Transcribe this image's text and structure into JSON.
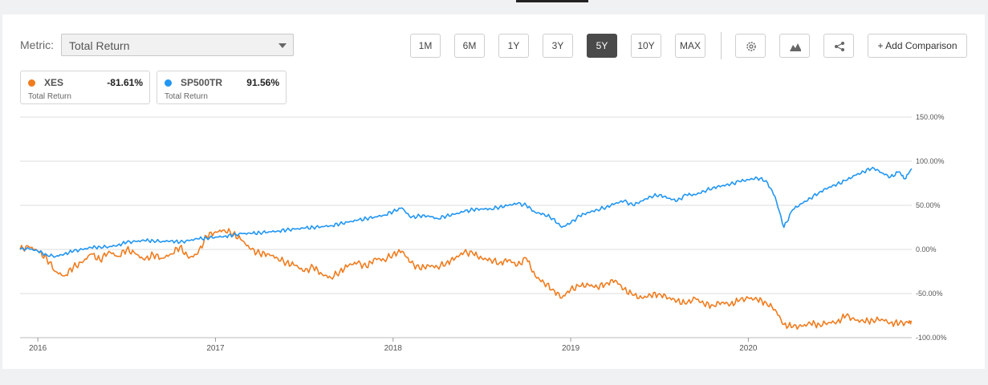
{
  "metric": {
    "label": "Metric:",
    "selected": "Total Return"
  },
  "ranges": [
    {
      "label": "1M",
      "active": false
    },
    {
      "label": "6M",
      "active": false
    },
    {
      "label": "1Y",
      "active": false
    },
    {
      "label": "3Y",
      "active": false
    },
    {
      "label": "5Y",
      "active": true
    },
    {
      "label": "10Y",
      "active": false
    },
    {
      "label": "MAX",
      "active": false
    }
  ],
  "toolbar": {
    "add_comparison": "+ Add Comparison",
    "settings_icon": "gear-icon",
    "chart_type_icon": "area-chart-icon",
    "share_icon": "share-icon"
  },
  "legend": [
    {
      "name": "XES",
      "value": "-81.61%",
      "sub": "Total Return",
      "color": "#f07c1e"
    },
    {
      "name": "SP500TR",
      "value": "91.56%",
      "sub": "Total Return",
      "color": "#2196f3"
    }
  ],
  "chart_data": {
    "type": "line",
    "title": "",
    "xlabel": "",
    "ylabel": "",
    "ylim": [
      -100,
      150
    ],
    "y_ticks": [
      150,
      100,
      50,
      0,
      -50,
      -100
    ],
    "y_tick_labels": [
      "150.00%",
      "100.00%",
      "50.00%",
      "0.00%",
      "-50.00%",
      "-100.00%"
    ],
    "x_range": [
      2015.9,
      2020.92
    ],
    "x_ticks": [
      2016,
      2017,
      2018,
      2019,
      2020
    ],
    "x_tick_labels": [
      "2016",
      "2017",
      "2018",
      "2019",
      "2020"
    ],
    "grid": true,
    "series": [
      {
        "name": "XES",
        "color": "#f07c1e",
        "points": [
          [
            2015.9,
            0
          ],
          [
            2015.95,
            3
          ],
          [
            2016.0,
            -2
          ],
          [
            2016.05,
            -10
          ],
          [
            2016.1,
            -25
          ],
          [
            2016.15,
            -30
          ],
          [
            2016.2,
            -20
          ],
          [
            2016.25,
            -15
          ],
          [
            2016.3,
            -5
          ],
          [
            2016.35,
            -12
          ],
          [
            2016.4,
            -2
          ],
          [
            2016.45,
            -8
          ],
          [
            2016.5,
            0
          ],
          [
            2016.55,
            -5
          ],
          [
            2016.6,
            -12
          ],
          [
            2016.65,
            -6
          ],
          [
            2016.7,
            -10
          ],
          [
            2016.75,
            -5
          ],
          [
            2016.8,
            3
          ],
          [
            2016.85,
            -10
          ],
          [
            2016.9,
            -5
          ],
          [
            2016.95,
            15
          ],
          [
            2017.0,
            20
          ],
          [
            2017.05,
            22
          ],
          [
            2017.1,
            18
          ],
          [
            2017.15,
            10
          ],
          [
            2017.2,
            0
          ],
          [
            2017.25,
            -5
          ],
          [
            2017.3,
            -5
          ],
          [
            2017.35,
            -10
          ],
          [
            2017.4,
            -15
          ],
          [
            2017.45,
            -18
          ],
          [
            2017.5,
            -25
          ],
          [
            2017.55,
            -20
          ],
          [
            2017.6,
            -28
          ],
          [
            2017.65,
            -32
          ],
          [
            2017.7,
            -25
          ],
          [
            2017.75,
            -18
          ],
          [
            2017.8,
            -15
          ],
          [
            2017.85,
            -20
          ],
          [
            2017.9,
            -10
          ],
          [
            2017.95,
            -12
          ],
          [
            2018.0,
            -5
          ],
          [
            2018.05,
            -2
          ],
          [
            2018.1,
            -15
          ],
          [
            2018.15,
            -22
          ],
          [
            2018.2,
            -18
          ],
          [
            2018.25,
            -20
          ],
          [
            2018.3,
            -15
          ],
          [
            2018.35,
            -10
          ],
          [
            2018.4,
            -3
          ],
          [
            2018.45,
            -5
          ],
          [
            2018.5,
            -10
          ],
          [
            2018.55,
            -12
          ],
          [
            2018.6,
            -15
          ],
          [
            2018.65,
            -12
          ],
          [
            2018.7,
            -18
          ],
          [
            2018.75,
            -10
          ],
          [
            2018.8,
            -30
          ],
          [
            2018.85,
            -38
          ],
          [
            2018.9,
            -45
          ],
          [
            2018.95,
            -55
          ],
          [
            2019.0,
            -45
          ],
          [
            2019.05,
            -42
          ],
          [
            2019.1,
            -40
          ],
          [
            2019.15,
            -43
          ],
          [
            2019.2,
            -38
          ],
          [
            2019.25,
            -35
          ],
          [
            2019.3,
            -45
          ],
          [
            2019.35,
            -52
          ],
          [
            2019.4,
            -55
          ],
          [
            2019.45,
            -52
          ],
          [
            2019.5,
            -50
          ],
          [
            2019.55,
            -55
          ],
          [
            2019.6,
            -58
          ],
          [
            2019.65,
            -62
          ],
          [
            2019.7,
            -55
          ],
          [
            2019.75,
            -62
          ],
          [
            2019.8,
            -63
          ],
          [
            2019.85,
            -60
          ],
          [
            2019.9,
            -62
          ],
          [
            2019.95,
            -58
          ],
          [
            2020.0,
            -55
          ],
          [
            2020.05,
            -57
          ],
          [
            2020.1,
            -60
          ],
          [
            2020.15,
            -68
          ],
          [
            2020.2,
            -85
          ],
          [
            2020.25,
            -88
          ],
          [
            2020.3,
            -87
          ],
          [
            2020.35,
            -84
          ],
          [
            2020.4,
            -85
          ],
          [
            2020.45,
            -83
          ],
          [
            2020.5,
            -82
          ],
          [
            2020.55,
            -75
          ],
          [
            2020.6,
            -80
          ],
          [
            2020.65,
            -82
          ],
          [
            2020.7,
            -80
          ],
          [
            2020.75,
            -79
          ],
          [
            2020.8,
            -83
          ],
          [
            2020.85,
            -84
          ],
          [
            2020.9,
            -83
          ],
          [
            2020.92,
            -81.61
          ]
        ]
      },
      {
        "name": "SP500TR",
        "color": "#2196f3",
        "points": [
          [
            2015.9,
            0
          ],
          [
            2015.95,
            1
          ],
          [
            2016.0,
            -2
          ],
          [
            2016.05,
            -6
          ],
          [
            2016.1,
            -8
          ],
          [
            2016.15,
            -5
          ],
          [
            2016.2,
            -2
          ],
          [
            2016.25,
            0
          ],
          [
            2016.3,
            2
          ],
          [
            2016.35,
            3
          ],
          [
            2016.4,
            3
          ],
          [
            2016.45,
            5
          ],
          [
            2016.5,
            8
          ],
          [
            2016.55,
            9
          ],
          [
            2016.6,
            10
          ],
          [
            2016.65,
            10
          ],
          [
            2016.7,
            9
          ],
          [
            2016.75,
            10
          ],
          [
            2016.8,
            8
          ],
          [
            2016.85,
            10
          ],
          [
            2016.9,
            12
          ],
          [
            2016.95,
            13
          ],
          [
            2017.0,
            14
          ],
          [
            2017.05,
            15
          ],
          [
            2017.1,
            16
          ],
          [
            2017.15,
            18
          ],
          [
            2017.2,
            18
          ],
          [
            2017.25,
            19
          ],
          [
            2017.3,
            20
          ],
          [
            2017.35,
            21
          ],
          [
            2017.4,
            22
          ],
          [
            2017.45,
            23
          ],
          [
            2017.5,
            24
          ],
          [
            2017.55,
            25
          ],
          [
            2017.6,
            26
          ],
          [
            2017.65,
            27
          ],
          [
            2017.7,
            29
          ],
          [
            2017.75,
            31
          ],
          [
            2017.8,
            33
          ],
          [
            2017.85,
            35
          ],
          [
            2017.9,
            37
          ],
          [
            2017.95,
            39
          ],
          [
            2018.0,
            43
          ],
          [
            2018.05,
            47
          ],
          [
            2018.1,
            36
          ],
          [
            2018.15,
            38
          ],
          [
            2018.2,
            38
          ],
          [
            2018.25,
            35
          ],
          [
            2018.3,
            38
          ],
          [
            2018.35,
            40
          ],
          [
            2018.4,
            43
          ],
          [
            2018.45,
            45
          ],
          [
            2018.5,
            46
          ],
          [
            2018.55,
            46
          ],
          [
            2018.6,
            48
          ],
          [
            2018.65,
            50
          ],
          [
            2018.7,
            52
          ],
          [
            2018.75,
            50
          ],
          [
            2018.8,
            42
          ],
          [
            2018.85,
            40
          ],
          [
            2018.9,
            35
          ],
          [
            2018.95,
            25
          ],
          [
            2019.0,
            30
          ],
          [
            2019.05,
            38
          ],
          [
            2019.1,
            42
          ],
          [
            2019.15,
            45
          ],
          [
            2019.2,
            48
          ],
          [
            2019.25,
            52
          ],
          [
            2019.3,
            55
          ],
          [
            2019.35,
            50
          ],
          [
            2019.4,
            55
          ],
          [
            2019.45,
            60
          ],
          [
            2019.5,
            62
          ],
          [
            2019.55,
            58
          ],
          [
            2019.6,
            55
          ],
          [
            2019.65,
            62
          ],
          [
            2019.7,
            62
          ],
          [
            2019.75,
            66
          ],
          [
            2019.8,
            70
          ],
          [
            2019.85,
            72
          ],
          [
            2019.9,
            74
          ],
          [
            2019.95,
            77
          ],
          [
            2020.0,
            79
          ],
          [
            2020.05,
            81
          ],
          [
            2020.1,
            78
          ],
          [
            2020.15,
            60
          ],
          [
            2020.2,
            25
          ],
          [
            2020.25,
            45
          ],
          [
            2020.3,
            52
          ],
          [
            2020.35,
            58
          ],
          [
            2020.4,
            65
          ],
          [
            2020.45,
            70
          ],
          [
            2020.5,
            74
          ],
          [
            2020.55,
            78
          ],
          [
            2020.6,
            84
          ],
          [
            2020.65,
            88
          ],
          [
            2020.7,
            93
          ],
          [
            2020.75,
            87
          ],
          [
            2020.8,
            82
          ],
          [
            2020.85,
            88
          ],
          [
            2020.88,
            80
          ],
          [
            2020.92,
            91.56
          ]
        ]
      }
    ]
  }
}
